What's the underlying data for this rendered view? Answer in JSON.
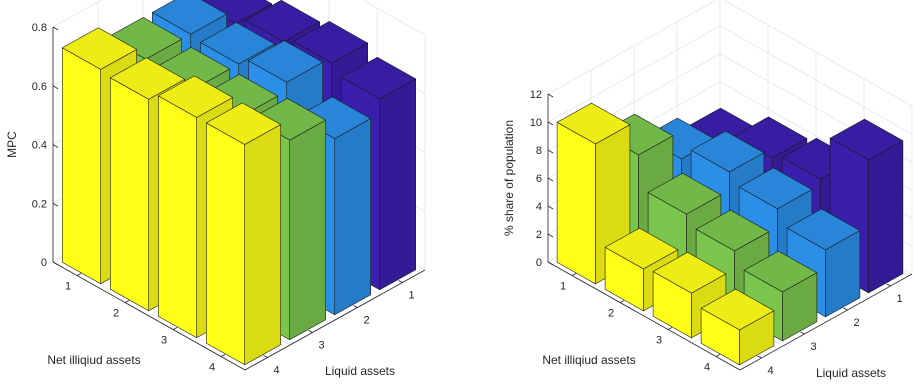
{
  "chart_data": [
    {
      "type": "bar3d",
      "zlabel": "MPC",
      "xlabel": "Net illiqiud assets",
      "ylabel": "Liquid assets",
      "x_ticks": [
        "1",
        "2",
        "3",
        "4"
      ],
      "y_ticks": [
        "1",
        "2",
        "3",
        "4"
      ],
      "z_ticks": [
        "0",
        "0.2",
        "0.4",
        "0.6",
        "0.8"
      ],
      "zlim": [
        0,
        0.8
      ],
      "grid": true,
      "colors": [
        "#3a1fad",
        "#2b8fe8",
        "#7ac64d",
        "#ffff17"
      ],
      "values": [
        [
          0.63,
          0.68,
          0.68,
          0.73
        ],
        [
          0.66,
          0.67,
          0.67,
          0.72
        ],
        [
          0.68,
          0.7,
          0.67,
          0.75
        ],
        [
          0.65,
          0.6,
          0.68,
          0.75
        ]
      ]
    },
    {
      "type": "bar3d",
      "zlabel": "% share of population",
      "xlabel": "Net illiqiud assets",
      "ylabel": "Liquid assets",
      "x_ticks": [
        "1",
        "2",
        "3",
        "4"
      ],
      "y_ticks": [
        "1",
        "2",
        "3",
        "4"
      ],
      "z_ticks": [
        "0",
        "2",
        "4",
        "6",
        "8",
        "10",
        "12"
      ],
      "zlim": [
        0,
        12
      ],
      "grid": true,
      "colors": [
        "#3a1fad",
        "#2b8fe8",
        "#7ac64d",
        "#ffff17"
      ],
      "values": [
        [
          4.5,
          5.5,
          7.5,
          10.0
        ],
        [
          5.8,
          6.5,
          5.2,
          3.0
        ],
        [
          6.2,
          5.8,
          4.5,
          3.2
        ],
        [
          9.5,
          4.8,
          3.5,
          2.5
        ]
      ]
    }
  ]
}
